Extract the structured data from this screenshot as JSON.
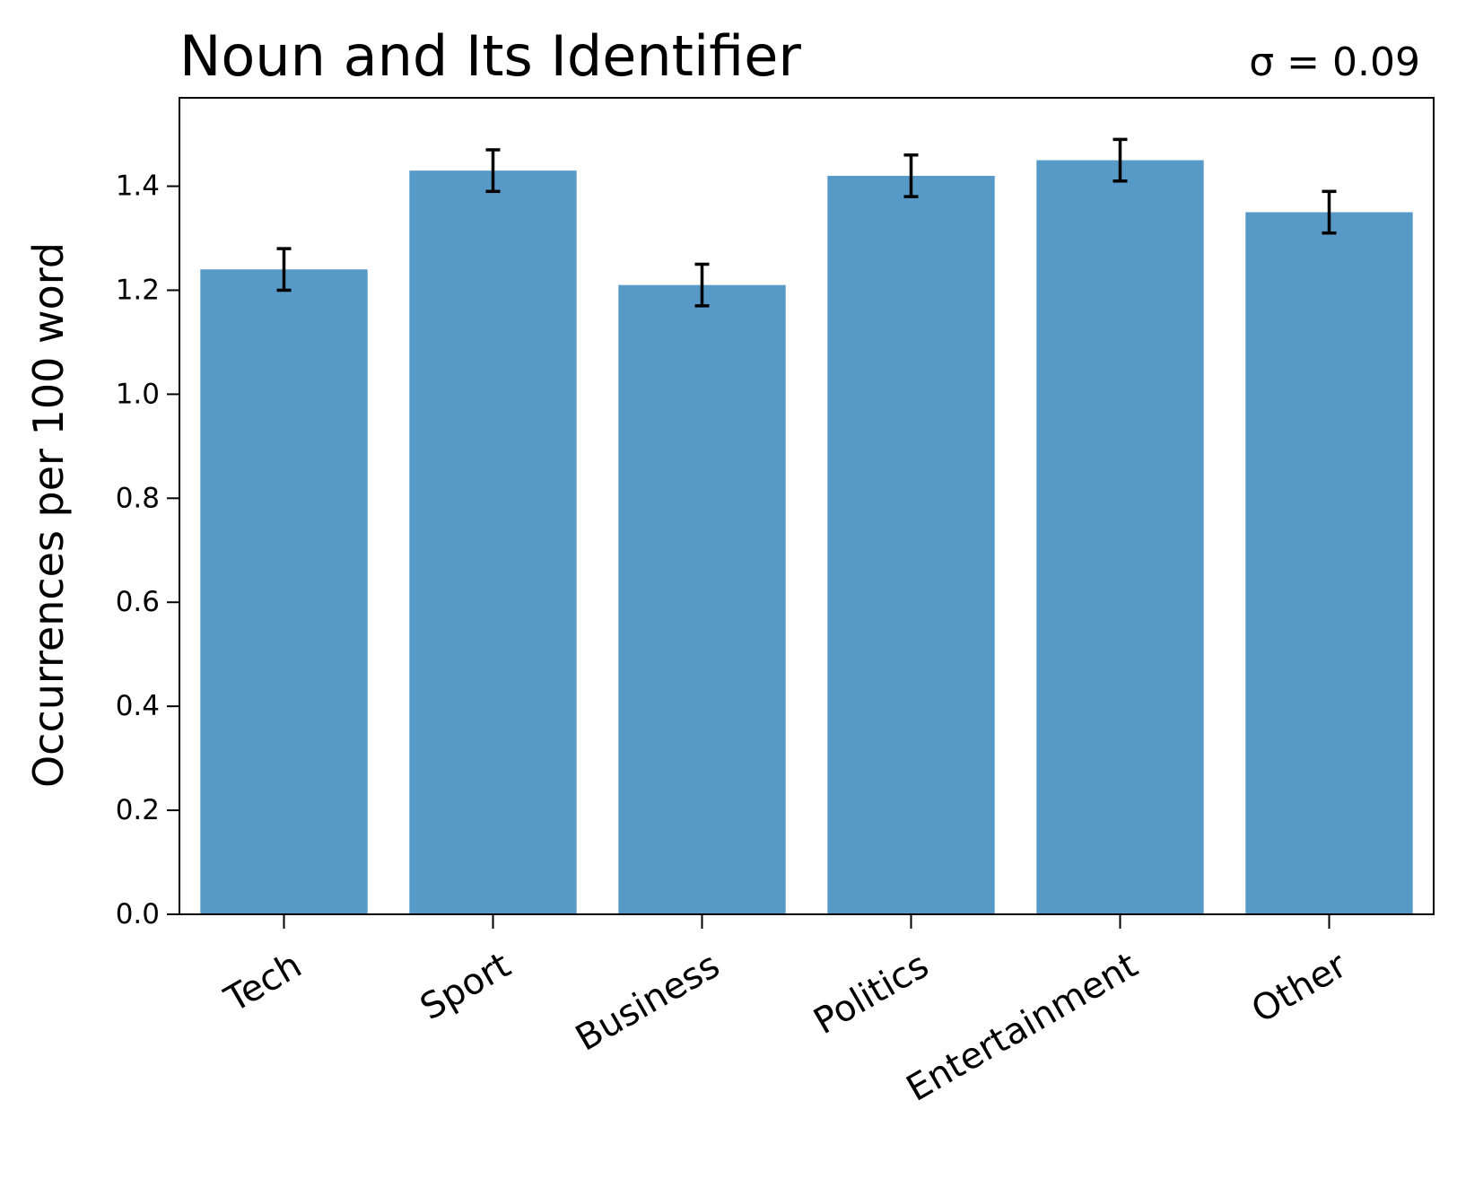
{
  "chart_data": {
    "type": "bar",
    "title": "Noun and Its Identifier",
    "annotation": "σ = 0.09",
    "xlabel": "",
    "ylabel": "Occurrences per 100 word",
    "categories": [
      "Tech",
      "Sport",
      "Business",
      "Politics",
      "Entertainment",
      "Other"
    ],
    "values": [
      1.24,
      1.43,
      1.21,
      1.42,
      1.45,
      1.35
    ],
    "errors": [
      0.04,
      0.04,
      0.04,
      0.04,
      0.04,
      0.04
    ],
    "ylim": [
      0,
      1.57
    ],
    "yticks": [
      "0.0",
      "0.2",
      "0.4",
      "0.6",
      "0.8",
      "1.0",
      "1.2",
      "1.4"
    ],
    "bar_color": "#5799c7",
    "error_color": "#000000",
    "grid": false,
    "legend": "none"
  }
}
